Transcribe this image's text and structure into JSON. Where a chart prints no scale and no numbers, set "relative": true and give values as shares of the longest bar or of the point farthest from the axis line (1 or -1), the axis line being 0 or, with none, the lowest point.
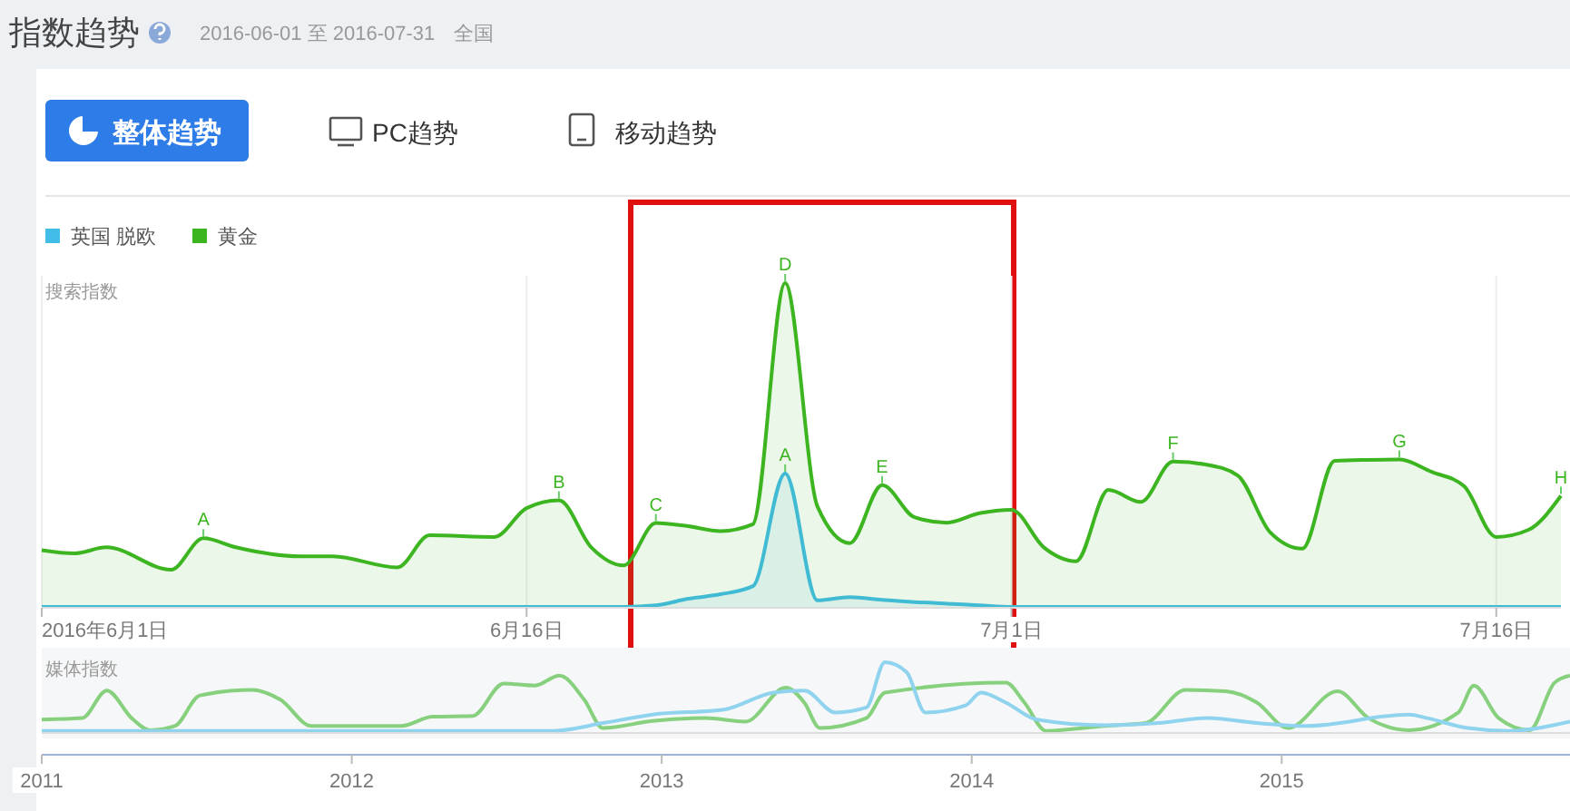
{
  "chart_data": [
    {
      "type": "area",
      "title": "指数趋势",
      "subtitle": "2016-06-01 至 2016-07-31",
      "ylabel": "搜索指数",
      "relative": true,
      "legend": "top left",
      "grid": "x",
      "annotations": [
        "全国",
        "整体趋势",
        "PC趋势",
        "移动趋势",
        {
          "text": "A",
          "x": "2016-06-06",
          "y": 0.212
        },
        {
          "text": "B",
          "x": "2016-06-17",
          "y": 0.329
        },
        {
          "text": "C",
          "x": "2016-06-20",
          "y": 0.259
        },
        {
          "text": "D",
          "x": "2016-06-24",
          "y": 1
        },
        {
          "text": "A",
          "x": "2016-06-24",
          "y": 0.412
        },
        {
          "text": "E",
          "x": "2016-06-27",
          "y": 0.376
        },
        {
          "text": "F",
          "x": "2016-07-06",
          "y": 0.449
        },
        {
          "text": "G",
          "x": "2016-07-13",
          "y": 0.455
        },
        {
          "text": "H",
          "x": "2016-07-18",
          "y": 0.343
        }
      ],
      "xlim": [
        "2016-06-01",
        "2016-07-18"
      ],
      "xticks": [
        {
          "value": "2016-06-01",
          "label": "2016年6月1日"
        },
        {
          "value": "2016-06-16",
          "label": "6月16日"
        },
        {
          "value": "2016-07-01",
          "label": "7月1日"
        },
        {
          "value": "2016-07-16",
          "label": "7月16日"
        }
      ],
      "series": [
        {
          "name": "英国 脱欧",
          "color": "#41bde8",
          "x": [
            "2016-06-01",
            "2016-06-19",
            "2016-06-20",
            "2016-06-21",
            "2016-06-22",
            "2016-06-23",
            "2016-06-24",
            "2016-06-25",
            "2016-06-26",
            "2016-06-27",
            "2016-06-28",
            "2016-06-29",
            "2016-06-30",
            "2016-07-01",
            "2016-07-18"
          ],
          "values": [
            0,
            0,
            0.005,
            0.025,
            0.039,
            0.064,
            0.412,
            0.02,
            0.03,
            0.022,
            0.015,
            0.01,
            0.005,
            0,
            0
          ]
        },
        {
          "name": "黄金",
          "color": "#3cb521",
          "x": [
            "2016-06-01",
            "2016-06-02",
            "2016-06-03",
            "2016-06-05",
            "2016-06-06",
            "2016-06-07",
            "2016-06-09",
            "2016-06-10",
            "2016-06-12",
            "2016-06-13",
            "2016-06-15",
            "2016-06-16",
            "2016-06-17",
            "2016-06-18",
            "2016-06-19",
            "2016-06-20",
            "2016-06-21",
            "2016-06-22",
            "2016-06-23",
            "2016-06-24",
            "2016-06-25",
            "2016-06-26",
            "2016-06-27",
            "2016-06-28",
            "2016-06-29",
            "2016-06-30",
            "2016-07-01",
            "2016-07-02",
            "2016-07-03",
            "2016-07-04",
            "2016-07-05",
            "2016-07-06",
            "2016-07-07",
            "2016-07-08",
            "2016-07-09",
            "2016-07-10",
            "2016-07-11",
            "2016-07-12",
            "2016-07-13",
            "2016-07-14",
            "2016-07-15",
            "2016-07-16",
            "2016-07-17",
            "2016-07-18"
          ],
          "values": [
            0.175,
            0.165,
            0.184,
            0.115,
            0.212,
            0.184,
            0.156,
            0.156,
            0.122,
            0.221,
            0.216,
            0.305,
            0.329,
            0.184,
            0.128,
            0.259,
            0.249,
            0.234,
            0.255,
            1,
            0.31,
            0.197,
            0.376,
            0.277,
            0.26,
            0.289,
            0.3,
            0.184,
            0.141,
            0.361,
            0.324,
            0.449,
            0.44,
            0.406,
            0.231,
            0.18,
            0.451,
            0.454,
            0.455,
            0.417,
            0.373,
            0.216,
            0.238,
            0.343
          ]
        }
      ]
    },
    {
      "type": "line",
      "ylabel": "媒体指数",
      "relative": true,
      "xlim": [
        2011,
        2015.93
      ],
      "xticks": [
        2011,
        2012,
        2013,
        2014,
        2015
      ],
      "series": [
        {
          "color": "#86d07e",
          "x": [
            2011,
            2011.13,
            2011.21,
            2011.29,
            2011.35,
            2011.43,
            2011.51,
            2011.68,
            2011.77,
            2011.87,
            2012.16,
            2012.26,
            2012.39,
            2012.49,
            2012.59,
            2012.67,
            2012.75,
            2012.81,
            2012.97,
            2013.14,
            2013.27,
            2013.4,
            2013.46,
            2013.51,
            2013.66,
            2013.72,
            2014.11,
            2014.17,
            2014.24,
            2014.43,
            2014.56,
            2014.69,
            2014.82,
            2014.92,
            2015.02,
            2015.18,
            2015.28,
            2015.41,
            2015.57,
            2015.62,
            2015.7,
            2015.8,
            2015.88,
            2015.93
          ],
          "values": [
            0.19,
            0.21,
            0.6,
            0.21,
            0.04,
            0.1,
            0.53,
            0.61,
            0.47,
            0.1,
            0.1,
            0.23,
            0.24,
            0.7,
            0.67,
            0.81,
            0.47,
            0.07,
            0.17,
            0.21,
            0.16,
            0.64,
            0.43,
            0.07,
            0.21,
            0.57,
            0.71,
            0.43,
            0.03,
            0.1,
            0.14,
            0.61,
            0.59,
            0.43,
            0.07,
            0.59,
            0.21,
            0.04,
            0.29,
            0.67,
            0.21,
            0.04,
            0.71,
            0.81
          ]
        },
        {
          "color": "#8fd3ee",
          "x": [
            2011,
            2012.65,
            2012.81,
            2012.97,
            2013.2,
            2013.36,
            2013.46,
            2013.56,
            2013.66,
            2013.72,
            2013.79,
            2013.85,
            2013.98,
            2014.03,
            2014.11,
            2014.21,
            2014.43,
            2014.6,
            2014.76,
            2014.92,
            2015.08,
            2015.41,
            2015.47,
            2015.6,
            2015.73,
            2015.93
          ],
          "values": [
            0.03,
            0.03,
            0.14,
            0.26,
            0.33,
            0.57,
            0.6,
            0.29,
            0.36,
            1,
            0.86,
            0.29,
            0.39,
            0.57,
            0.43,
            0.19,
            0.11,
            0.14,
            0.21,
            0.14,
            0.1,
            0.26,
            0.21,
            0.07,
            0.03,
            0.16
          ]
        }
      ]
    }
  ]
}
